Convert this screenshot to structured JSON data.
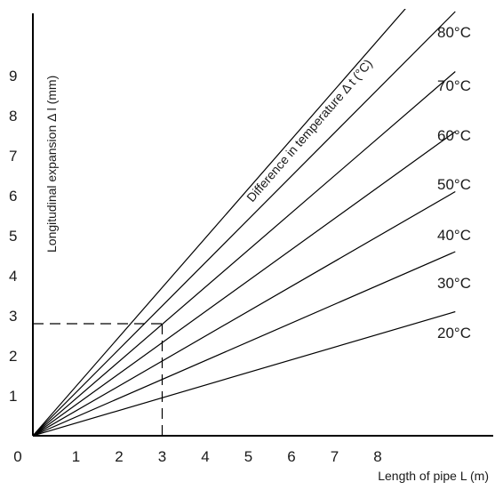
{
  "chart_data": {
    "type": "line",
    "title": "",
    "xlabel": "Length of pipe L (m)",
    "ylabel": "Longitudinal expansion Δ l (mm)",
    "series_group_label": "Difference in temperature Δ t (°C)",
    "xlim": [
      0,
      9.8
    ],
    "ylim": [
      0,
      10.3
    ],
    "x_ticks": [
      "0",
      "1",
      "2",
      "3",
      "4",
      "5",
      "6",
      "7",
      "8"
    ],
    "y_ticks": [
      "1",
      "2",
      "3",
      "4",
      "5",
      "6",
      "7",
      "8",
      "9"
    ],
    "grid": false,
    "legend": "inline labels at line ends",
    "series": [
      {
        "name": "20°C",
        "x": [
          0,
          9.8
        ],
        "y": [
          0,
          3.1
        ]
      },
      {
        "name": "30°C",
        "x": [
          0,
          9.8
        ],
        "y": [
          0,
          4.6
        ]
      },
      {
        "name": "40°C",
        "x": [
          0,
          9.8
        ],
        "y": [
          0,
          6.1
        ]
      },
      {
        "name": "50°C",
        "x": [
          0,
          9.8
        ],
        "y": [
          0,
          7.6
        ]
      },
      {
        "name": "60°C",
        "x": [
          0,
          9.8
        ],
        "y": [
          0,
          9.1
        ]
      },
      {
        "name": "70°C",
        "x": [
          0,
          9.8
        ],
        "y": [
          0,
          10.6
        ]
      },
      {
        "name": "80°C",
        "x": [
          0,
          9.8
        ],
        "y": [
          0,
          12.1
        ]
      }
    ],
    "annotation": {
      "type": "dashed-reference",
      "x": 3,
      "y": 2.8
    }
  }
}
